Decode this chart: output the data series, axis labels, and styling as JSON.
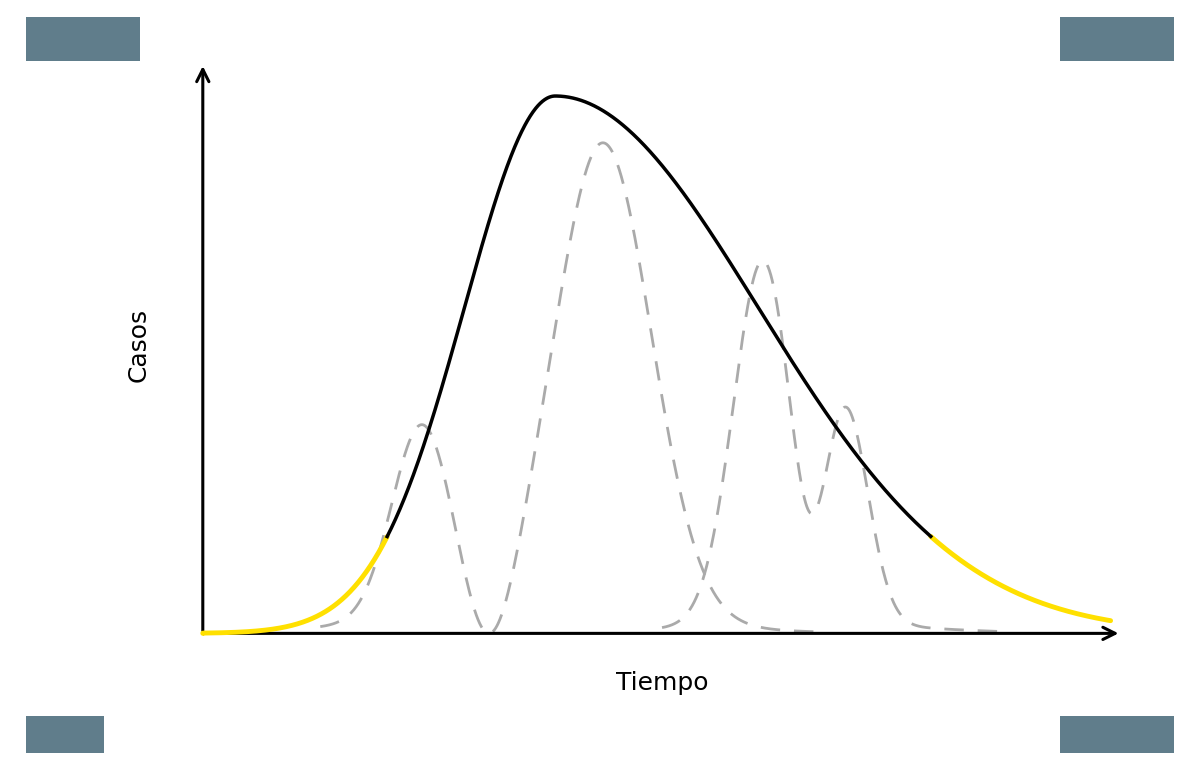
{
  "title": "",
  "xlabel": "Tiempo",
  "ylabel": "Casos",
  "background_color": "#ffffff",
  "axis_color": "#000000",
  "black_curve_color": "#000000",
  "yellow_curve_color": "#FFE000",
  "grey_dashed_color": "#aaaaaa",
  "corner_color": "#607d8b",
  "figsize": [
    12.0,
    7.62
  ],
  "dpi": 100,
  "xlabel_fontsize": 18,
  "ylabel_fontsize": 18,
  "yellow_linewidth": 3.5,
  "black_linewidth": 2.5,
  "grey_linewidth": 2.0,
  "ax_x0": 1.0,
  "ax_y0": 0.8,
  "ax_xmax": 9.6,
  "ax_ymax": 9.5,
  "xlim": [
    0,
    10
  ],
  "ylim": [
    0,
    10
  ]
}
